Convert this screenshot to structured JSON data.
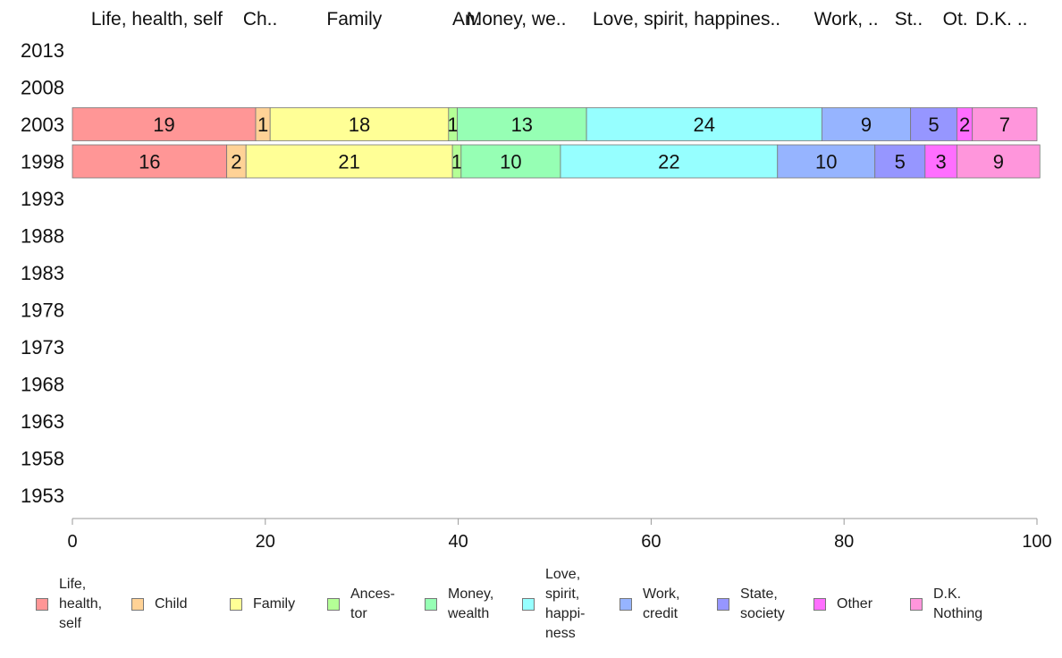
{
  "chart_data": {
    "type": "bar",
    "orientation": "horizontal",
    "stacked": true,
    "top_labels": [
      "Life, health, self",
      "Ch..",
      "Family",
      "An.",
      "Money, we..",
      "Love, spirit, happines..",
      "Work, ..",
      "St..",
      "Ot.",
      "D.K. .."
    ],
    "categories": [
      "2013",
      "2008",
      "2003",
      "1998",
      "1993",
      "1988",
      "1983",
      "1978",
      "1973",
      "1968",
      "1963",
      "1958",
      "1953"
    ],
    "xlim": [
      0,
      100
    ],
    "xticks": [
      "0",
      "20",
      "40",
      "60",
      "80",
      "100"
    ],
    "grid": false,
    "legend_position": "bottom",
    "series": [
      {
        "name": "Life, health, self",
        "legend_label": "Life,\nhealth,\nself",
        "color": "#ff9696",
        "values": {
          "2003": 19,
          "1998": 16
        },
        "labels": {
          "2003": "19",
          "1998": "16"
        }
      },
      {
        "name": "Child",
        "legend_label": "Child",
        "color": "#ffd296",
        "values": {
          "2003": 1.5,
          "1998": 2
        },
        "labels": {
          "2003": "1",
          "1998": "2"
        }
      },
      {
        "name": "Family",
        "legend_label": "Family",
        "color": "#ffff96",
        "values": {
          "2003": 18.5,
          "1998": 21.4
        },
        "labels": {
          "2003": "18",
          "1998": "21"
        }
      },
      {
        "name": "Ancestor",
        "legend_label": "Ances-\ntor",
        "color": "#b4ff96",
        "values": {
          "2003": 0.9,
          "1998": 0.9
        },
        "labels": {
          "2003": "1",
          "1998": "1"
        }
      },
      {
        "name": "Money, wealth",
        "legend_label": "Money,\nwealth",
        "color": "#96ffb4",
        "values": {
          "2003": 13.4,
          "1998": 10.3
        },
        "labels": {
          "2003": "13",
          "1998": "10"
        }
      },
      {
        "name": "Love, spirit, happiness",
        "legend_label": "Love,\nspirit,\nhappi-\nness",
        "color": "#96ffff",
        "values": {
          "2003": 24.4,
          "1998": 22.5
        },
        "labels": {
          "2003": "24",
          "1998": "22"
        }
      },
      {
        "name": "Work, credit",
        "legend_label": "Work,\ncredit",
        "color": "#96b4ff",
        "values": {
          "2003": 9.2,
          "1998": 10.1
        },
        "labels": {
          "2003": "9",
          "1998": "10"
        }
      },
      {
        "name": "State, society",
        "legend_label": "State,\nsociety",
        "color": "#9696ff",
        "values": {
          "2003": 4.8,
          "1998": 5.2
        },
        "labels": {
          "2003": "5",
          "1998": "5"
        }
      },
      {
        "name": "Other",
        "legend_label": "Other",
        "color": "#ff6eff",
        "values": {
          "2003": 1.6,
          "1998": 3.3
        },
        "labels": {
          "2003": "2",
          "1998": "3"
        }
      },
      {
        "name": "D.K. Nothing",
        "legend_label": "D.K.\nNothing",
        "color": "#ff96dc",
        "values": {
          "2003": 6.7,
          "1998": 8.6
        },
        "labels": {
          "2003": "7",
          "1998": "9"
        }
      }
    ]
  }
}
